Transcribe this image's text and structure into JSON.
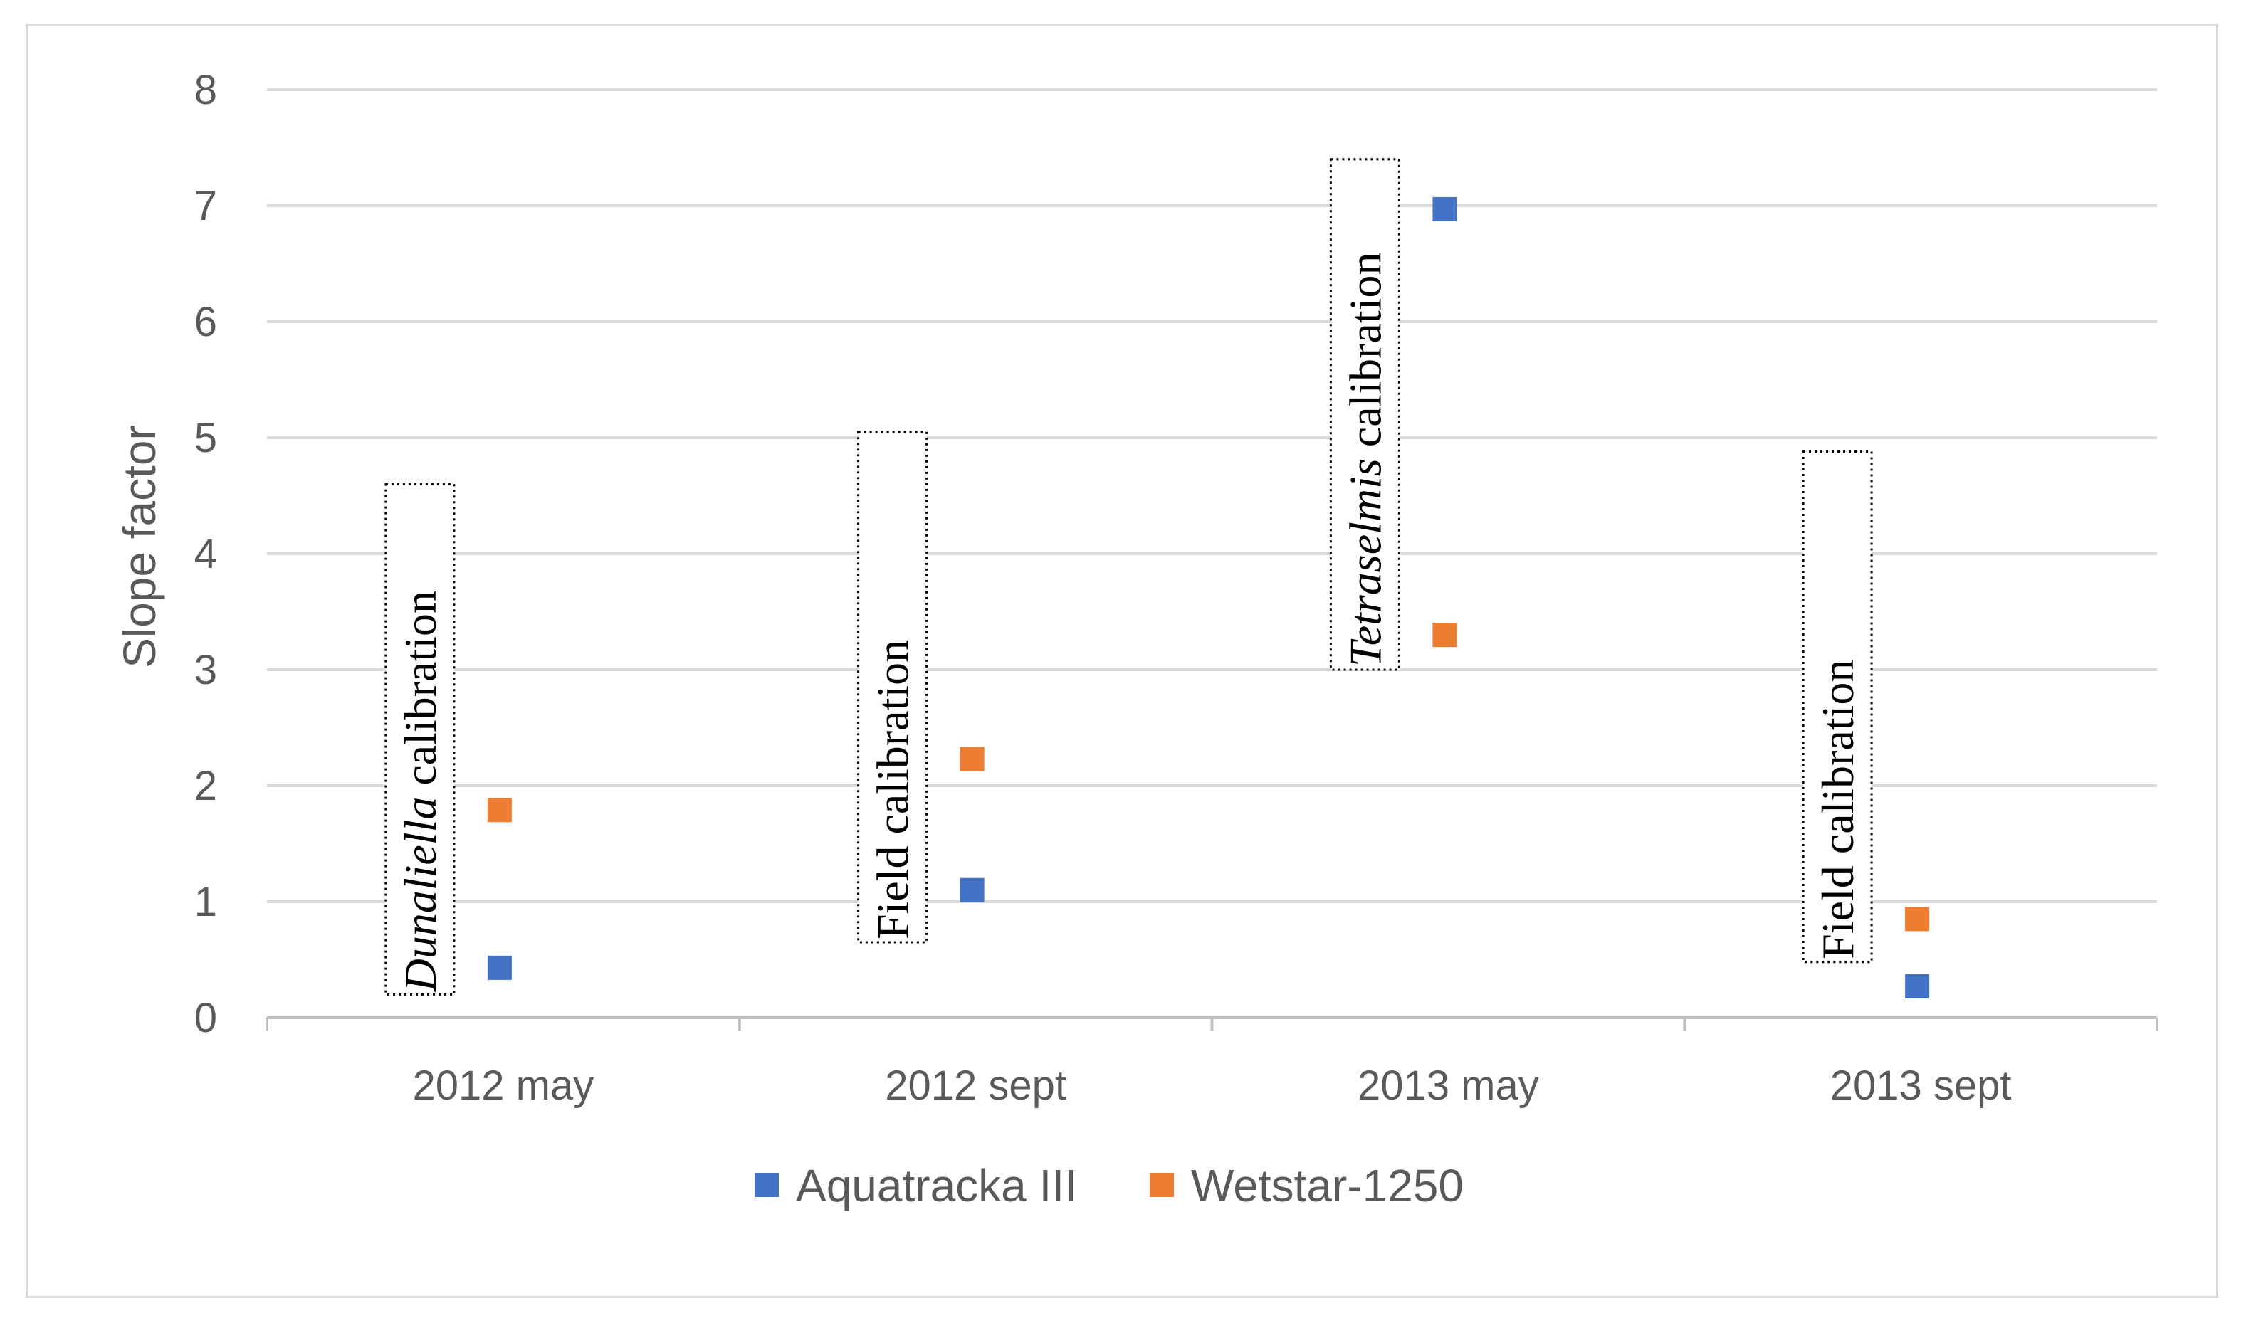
{
  "chart_data": {
    "type": "scatter",
    "categories": [
      "2012 may",
      "2012 sept",
      "2013 may",
      "2013 sept"
    ],
    "ylabel": "Slope factor",
    "xlabel": "",
    "ylim": [
      0,
      8
    ],
    "yticks": [
      "0",
      "1",
      "2",
      "3",
      "4",
      "5",
      "6",
      "7",
      "8"
    ],
    "grid": true,
    "legend_position": "bottom",
    "series": [
      {
        "name": "Aquatracka III",
        "color": "#4472c4",
        "values": [
          0.43,
          1.1,
          6.97,
          0.27
        ]
      },
      {
        "name": "Wetstar-1250",
        "color": "#ed7d31",
        "values": [
          1.79,
          2.23,
          3.3,
          0.85
        ]
      }
    ],
    "annotations": [
      {
        "category": "2012 may",
        "italic": "Dunaliella",
        "text": " calibration",
        "ymin": 0.2,
        "ymax": 4.6
      },
      {
        "category": "2012 sept",
        "italic": "",
        "text": "Field calibration",
        "ymin": 0.65,
        "ymax": 5.05
      },
      {
        "category": "2013 may",
        "italic": "Tetraselmis",
        "text": " calibration",
        "ymin": 3.0,
        "ymax": 7.4
      },
      {
        "category": "2013 sept",
        "italic": "",
        "text": "Field calibration",
        "ymin": 0.48,
        "ymax": 4.88
      }
    ]
  }
}
